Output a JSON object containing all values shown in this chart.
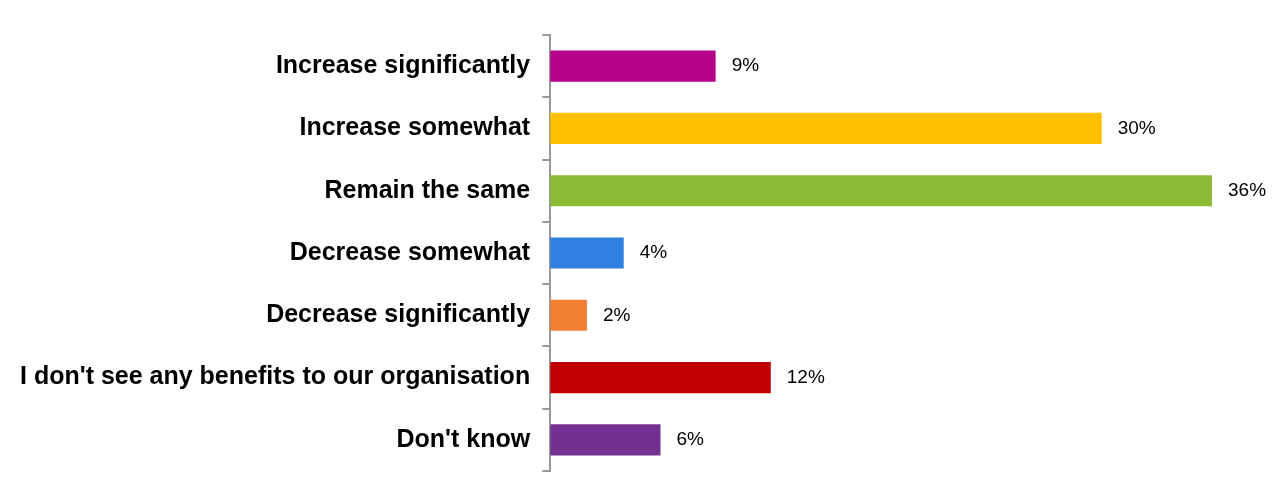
{
  "chart_data": {
    "type": "bar",
    "orientation": "horizontal",
    "categories": [
      "Increase significantly",
      "Increase somewhat",
      "Remain the same",
      "Decrease somewhat",
      "Decrease significantly",
      "I don't see any benefits to our organisation",
      "Don't know"
    ],
    "values": [
      9,
      30,
      36,
      4,
      2,
      12,
      6
    ],
    "colors": [
      "#b5008a",
      "#ffc000",
      "#8dbb36",
      "#2f80e0",
      "#ef7f32",
      "#c00000",
      "#733090"
    ],
    "value_labels": [
      "9%",
      "30%",
      "36%",
      "4%",
      "2%",
      "12%",
      "6%"
    ],
    "legend": false,
    "grid": false
  }
}
